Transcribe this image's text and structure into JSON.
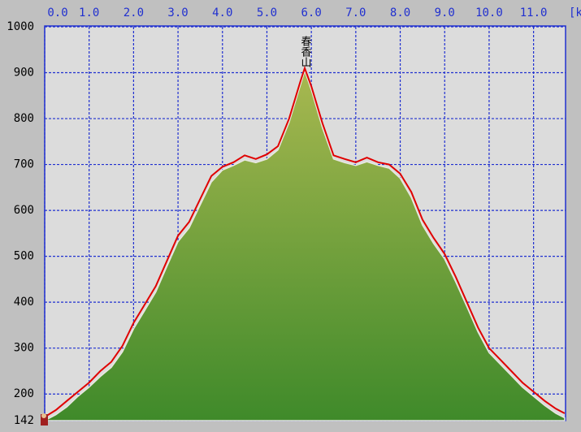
{
  "chart_data": {
    "type": "area",
    "annotation": "春香山",
    "x_label": "[km]",
    "x": [
      0,
      0.25,
      0.5,
      0.75,
      1.0,
      1.25,
      1.5,
      1.75,
      2.0,
      2.25,
      2.5,
      2.75,
      3.0,
      3.25,
      3.5,
      3.75,
      4.0,
      4.25,
      4.5,
      4.75,
      5.0,
      5.25,
      5.5,
      5.75,
      5.85,
      6.0,
      6.25,
      6.5,
      6.75,
      7.0,
      7.25,
      7.5,
      7.75,
      8.0,
      8.25,
      8.5,
      8.75,
      9.0,
      9.25,
      9.5,
      9.75,
      10.0,
      10.25,
      10.5,
      10.75,
      11.0,
      11.25,
      11.5,
      11.7
    ],
    "series": [
      {
        "color": "#5a9a30",
        "fill": true,
        "values": [
          142,
          155,
          172,
          195,
          215,
          238,
          258,
          292,
          342,
          382,
          422,
          478,
          532,
          562,
          612,
          662,
          688,
          698,
          710,
          704,
          712,
          732,
          792,
          872,
          904,
          862,
          780,
          712,
          704,
          698,
          706,
          698,
          692,
          670,
          628,
          568,
          528,
          494,
          444,
          390,
          335,
          290,
          265,
          240,
          215,
          195,
          175,
          158,
          148
        ]
      },
      {
        "color": "#e00000",
        "fill": false,
        "values": [
          150,
          165,
          185,
          205,
          225,
          250,
          270,
          305,
          355,
          395,
          435,
          490,
          545,
          575,
          625,
          675,
          695,
          705,
          720,
          712,
          722,
          740,
          800,
          880,
          910,
          870,
          790,
          720,
          712,
          705,
          715,
          705,
          700,
          680,
          640,
          580,
          540,
          505,
          455,
          400,
          345,
          300,
          275,
          250,
          225,
          205,
          185,
          168,
          158
        ]
      }
    ],
    "xlim": [
      0,
      11.72
    ],
    "xticks": [
      {
        "value": 0,
        "label": "0.0"
      },
      {
        "value": 1,
        "label": "1.0"
      },
      {
        "value": 2,
        "label": "2.0"
      },
      {
        "value": 3,
        "label": "3.0"
      },
      {
        "value": 4,
        "label": "4.0"
      },
      {
        "value": 5,
        "label": "5.0"
      },
      {
        "value": 6,
        "label": "6.0"
      },
      {
        "value": 7,
        "label": "7.0"
      },
      {
        "value": 8,
        "label": "8.0"
      },
      {
        "value": 9,
        "label": "9.0"
      },
      {
        "value": 10,
        "label": "10.0"
      },
      {
        "value": 11,
        "label": "11.0"
      }
    ],
    "ylim": [
      142,
      1000
    ],
    "yticks": [
      142,
      200,
      300,
      400,
      500,
      600,
      700,
      800,
      900,
      1000
    ],
    "grid": true
  }
}
